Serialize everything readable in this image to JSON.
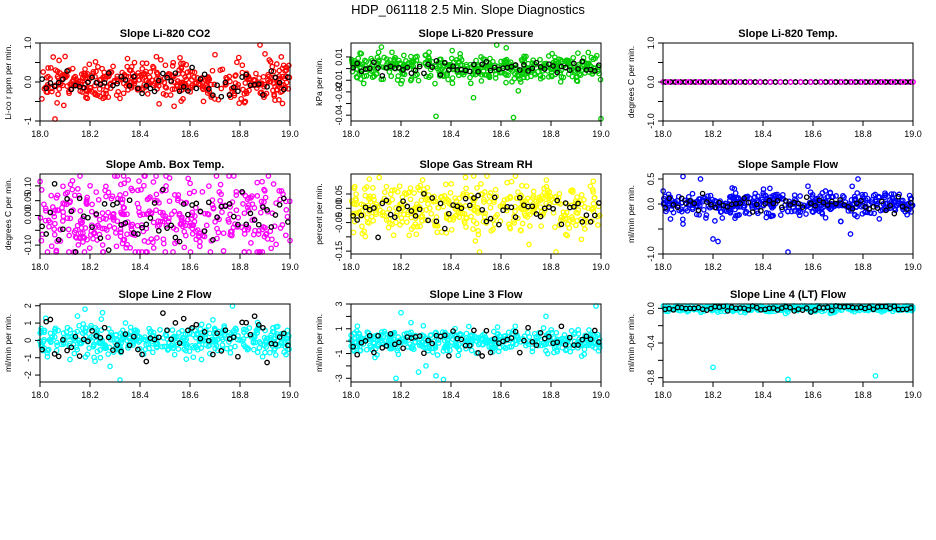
{
  "figure": {
    "title": "HDP_061118  2.5 Min. Slope Diagnostics"
  },
  "chart_data": [
    {
      "type": "scatter",
      "title": "Slope Li-820 CO2",
      "xlabel": "",
      "ylabel": "Li-co r ppm per min.",
      "xlim": [
        18.0,
        19.0
      ],
      "ylim": [
        -1.0,
        1.0
      ],
      "xticks": [
        18.0,
        18.2,
        18.4,
        18.6,
        18.8,
        19.0
      ],
      "xtick_labels": [
        "18.0",
        "18.2",
        "18.4",
        "18.6",
        "18.8",
        "19.0"
      ],
      "yticks": [
        -1.0,
        -0.5,
        0.0,
        0.5,
        1.0
      ],
      "ytick_labels": [
        "-1",
        "0.0",
        "1.0"
      ],
      "ytick_label_values": [
        -1.0,
        0.0,
        1.0
      ],
      "color": "#ff0000",
      "spread": 0.24,
      "black_spread": 0.18,
      "outliers": [
        [
          18.06,
          -0.95
        ],
        [
          18.35,
          0.6
        ],
        [
          18.56,
          0.62
        ],
        [
          18.7,
          0.7
        ],
        [
          18.88,
          1.0
        ],
        [
          18.9,
          0.72
        ],
        [
          18.97,
          -0.55
        ]
      ]
    },
    {
      "type": "scatter",
      "title": "Slope Li-820 Pressure",
      "xlabel": "",
      "ylabel": "kPa per min.",
      "xlim": [
        18.0,
        19.0
      ],
      "ylim": [
        -0.045,
        0.022
      ],
      "xticks": [
        18.0,
        18.2,
        18.4,
        18.6,
        18.8,
        19.0
      ],
      "xtick_labels": [
        "18.0",
        "18.2",
        "18.4",
        "18.6",
        "18.8",
        "19.0"
      ],
      "yticks": [
        -0.04,
        -0.03,
        -0.02,
        -0.01,
        0.0,
        0.01
      ],
      "ytick_labels": [
        "-0.04",
        "-0.02",
        "-0.01",
        "0.01"
      ],
      "ytick_label_values": [
        -0.04,
        -0.02,
        -0.01,
        0.01
      ],
      "color": "#00cc00",
      "spread": 0.006,
      "black_spread": 0.003,
      "center": 0.001,
      "outliers": [
        [
          18.34,
          -0.041
        ],
        [
          18.65,
          -0.042
        ],
        [
          19.0,
          -0.043
        ],
        [
          18.49,
          -0.025
        ],
        [
          18.62,
          -0.012
        ],
        [
          18.2,
          -0.013
        ]
      ]
    },
    {
      "type": "scatter",
      "title": "Slope Li-820 Temp.",
      "xlabel": "",
      "ylabel": "degrees C per min.",
      "xlim": [
        18.0,
        19.0
      ],
      "ylim": [
        -1.0,
        1.0
      ],
      "xticks": [
        18.0,
        18.2,
        18.4,
        18.6,
        18.8,
        19.0
      ],
      "xtick_labels": [
        "18.0",
        "18.2",
        "18.4",
        "18.6",
        "18.8",
        "19.0"
      ],
      "yticks": [
        -1.0,
        -0.5,
        0.0,
        0.5,
        1.0
      ],
      "ytick_labels": [
        "-1.0",
        "0.0",
        "1.0"
      ],
      "ytick_label_values": [
        -1.0,
        0.0,
        1.0
      ],
      "color": "#ff00ff",
      "spread": 0.0,
      "black_spread": 0.0,
      "constant": true,
      "outliers": []
    },
    {
      "type": "scatter",
      "title": "Slope Amb. Box Temp.",
      "xlabel": "",
      "ylabel": "degrees C per min.",
      "xlim": [
        18.0,
        19.0
      ],
      "ylim": [
        -0.13,
        0.14
      ],
      "xticks": [
        18.0,
        18.2,
        18.4,
        18.6,
        18.8,
        19.0
      ],
      "xtick_labels": [
        "18.0",
        "18.2",
        "18.4",
        "18.6",
        "18.8",
        "19.0"
      ],
      "yticks": [
        -0.1,
        -0.05,
        0.0,
        0.05,
        0.1
      ],
      "ytick_labels": [
        "-0.10",
        "0.00",
        "0.05",
        "0.10"
      ],
      "ytick_label_values": [
        -0.1,
        0.0,
        0.05,
        0.1
      ],
      "color": "#ff00ff",
      "spread": 0.07,
      "black_spread": 0.05,
      "outliers": [
        [
          18.42,
          0.14
        ]
      ]
    },
    {
      "type": "scatter",
      "title": "Slope Gas Stream RH",
      "xlabel": "",
      "ylabel": "percent per min.",
      "xlim": [
        18.0,
        19.0
      ],
      "ylim": [
        -0.16,
        0.12
      ],
      "xticks": [
        18.0,
        18.2,
        18.4,
        18.6,
        18.8,
        19.0
      ],
      "xtick_labels": [
        "18.0",
        "18.2",
        "18.4",
        "18.6",
        "18.8",
        "19.0"
      ],
      "yticks": [
        -0.15,
        -0.1,
        -0.05,
        0.0,
        0.05
      ],
      "ytick_labels": [
        "-0.15",
        "-0.05",
        "0.00",
        "0.05"
      ],
      "ytick_label_values": [
        -0.15,
        -0.05,
        0.0,
        0.05
      ],
      "color": "#ffff00",
      "spread": 0.05,
      "black_spread": 0.03,
      "outliers": [
        [
          18.82,
          -0.16
        ]
      ]
    },
    {
      "type": "scatter",
      "title": "Slope Sample Flow",
      "xlabel": "",
      "ylabel": "ml/min per min.",
      "xlim": [
        18.0,
        19.0
      ],
      "ylim": [
        -1.0,
        0.6
      ],
      "xticks": [
        18.0,
        18.2,
        18.4,
        18.6,
        18.8,
        19.0
      ],
      "xtick_labels": [
        "18.0",
        "18.2",
        "18.4",
        "18.6",
        "18.8",
        "19.0"
      ],
      "yticks": [
        -1.0,
        -0.5,
        0.0,
        0.5
      ],
      "ytick_labels": [
        "-1.0",
        "0.0",
        "0.5"
      ],
      "ytick_label_values": [
        -1.0,
        0.0,
        0.5
      ],
      "color": "#0000ff",
      "spread": 0.12,
      "black_spread": 0.08,
      "outliers": [
        [
          18.08,
          0.55
        ],
        [
          18.15,
          0.5
        ],
        [
          18.2,
          -0.7
        ],
        [
          18.22,
          -0.75
        ],
        [
          18.5,
          -1.0
        ],
        [
          18.75,
          -0.6
        ],
        [
          18.78,
          0.5
        ],
        [
          18.08,
          -0.4
        ],
        [
          18.03,
          -0.3
        ]
      ]
    },
    {
      "type": "scatter",
      "title": "Slope Line 2 Flow",
      "xlabel": "",
      "ylabel": "ml/min per min.",
      "xlim": [
        18.0,
        19.0
      ],
      "ylim": [
        -2.4,
        2.1
      ],
      "xticks": [
        18.0,
        18.2,
        18.4,
        18.6,
        18.8,
        19.0
      ],
      "xtick_labels": [
        "18.0",
        "18.2",
        "18.4",
        "18.6",
        "18.8",
        "19.0"
      ],
      "yticks": [
        -2.0,
        -1.0,
        0.0,
        1.0,
        2.0
      ],
      "ytick_labels": [
        "-2",
        "-1",
        "0",
        "1",
        "2"
      ],
      "ytick_label_values": [
        -2.0,
        -1.0,
        0.0,
        1.0,
        2.0
      ],
      "color": "#00ffff",
      "spread": 0.45,
      "black_spread": 0.6,
      "outliers": [
        [
          18.32,
          -2.3
        ],
        [
          18.77,
          2.0
        ],
        [
          18.18,
          1.8
        ],
        [
          18.15,
          1.4
        ],
        [
          18.25,
          1.6
        ],
        [
          18.12,
          -1.1
        ],
        [
          18.22,
          -1.2
        ],
        [
          18.28,
          -1.5
        ],
        [
          18.9,
          -0.7
        ]
      ]
    },
    {
      "type": "scatter",
      "title": "Slope Line 3 Flow",
      "xlabel": "",
      "ylabel": "ml/min per min.",
      "xlim": [
        18.0,
        19.0
      ],
      "ylim": [
        -3.3,
        3.0
      ],
      "xticks": [
        18.0,
        18.2,
        18.4,
        18.6,
        18.8,
        19.0
      ],
      "xtick_labels": [
        "18.0",
        "18.2",
        "18.4",
        "18.6",
        "18.8",
        "19.0"
      ],
      "yticks": [
        -3.0,
        -2.0,
        -1.0,
        0.0,
        1.0,
        2.0,
        3.0
      ],
      "ytick_labels": [
        "-3",
        "-1",
        "1",
        "3"
      ],
      "ytick_label_values": [
        -3.0,
        -1.0,
        1.0,
        3.0
      ],
      "color": "#00ffff",
      "spread": 0.45,
      "black_spread": 0.6,
      "outliers": [
        [
          18.2,
          2.3
        ],
        [
          18.24,
          1.5
        ],
        [
          18.18,
          -3.0
        ],
        [
          18.27,
          -2.5
        ],
        [
          18.34,
          -2.8
        ],
        [
          18.37,
          -3.1
        ],
        [
          18.3,
          -2.0
        ],
        [
          18.98,
          3.0
        ],
        [
          18.78,
          2.0
        ]
      ]
    },
    {
      "type": "scatter",
      "title": "Slope Line 4 (LT) Flow",
      "xlabel": "",
      "ylabel": "ml/min per min.",
      "xlim": [
        18.0,
        19.0
      ],
      "ylim": [
        -0.85,
        0.05
      ],
      "xticks": [
        18.0,
        18.2,
        18.4,
        18.6,
        18.8,
        19.0
      ],
      "xtick_labels": [
        "18.0",
        "18.2",
        "18.4",
        "18.6",
        "18.8",
        "19.0"
      ],
      "yticks": [
        -0.8,
        -0.6,
        -0.4,
        -0.2,
        0.0
      ],
      "ytick_labels": [
        "-0.8",
        "-0.4",
        "0.0"
      ],
      "ytick_label_values": [
        -0.8,
        -0.4,
        0.0
      ],
      "color": "#00ffff",
      "spread": 0.02,
      "black_spread": 0.02,
      "outliers": [
        [
          18.2,
          -0.68
        ],
        [
          18.5,
          -0.82
        ],
        [
          18.85,
          -0.78
        ]
      ]
    }
  ]
}
